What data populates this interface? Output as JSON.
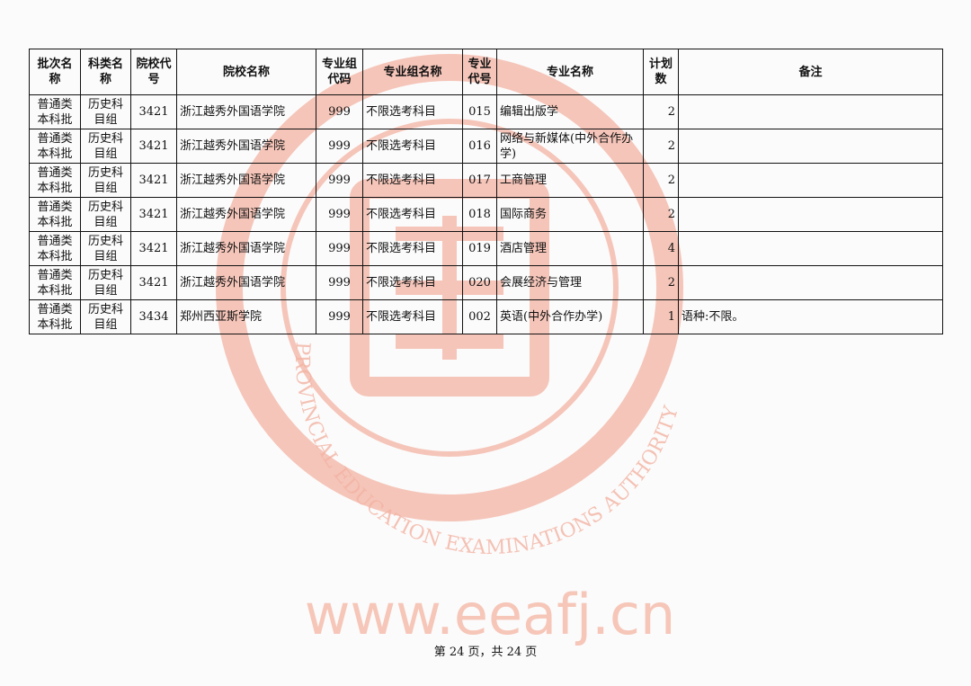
{
  "watermark": {
    "url_text": "www.eeafj.cn",
    "seal_text": "PROVINCIAL EDUCATION EXAMINATIONS AUTHORITY",
    "color": "#f0a08a"
  },
  "table": {
    "headers": [
      "批次名称",
      "科类名称",
      "院校代号",
      "院校名称",
      "专业组代码",
      "专业组名称",
      "专业代号",
      "专业名称",
      "计划数",
      "备注"
    ],
    "rows": [
      [
        "普通类本科批",
        "历史科目组",
        "3421",
        "浙江越秀外国语学院",
        "999",
        "不限选考科目",
        "015",
        "编辑出版学",
        "2",
        ""
      ],
      [
        "普通类本科批",
        "历史科目组",
        "3421",
        "浙江越秀外国语学院",
        "999",
        "不限选考科目",
        "016",
        "网络与新媒体(中外合作办学)",
        "2",
        ""
      ],
      [
        "普通类本科批",
        "历史科目组",
        "3421",
        "浙江越秀外国语学院",
        "999",
        "不限选考科目",
        "017",
        "工商管理",
        "2",
        ""
      ],
      [
        "普通类本科批",
        "历史科目组",
        "3421",
        "浙江越秀外国语学院",
        "999",
        "不限选考科目",
        "018",
        "国际商务",
        "2",
        ""
      ],
      [
        "普通类本科批",
        "历史科目组",
        "3421",
        "浙江越秀外国语学院",
        "999",
        "不限选考科目",
        "019",
        "酒店管理",
        "4",
        ""
      ],
      [
        "普通类本科批",
        "历史科目组",
        "3421",
        "浙江越秀外国语学院",
        "999",
        "不限选考科目",
        "020",
        "会展经济与管理",
        "2",
        ""
      ],
      [
        "普通类本科批",
        "历史科目组",
        "3434",
        "郑州西亚斯学院",
        "999",
        "不限选考科目",
        "002",
        "英语(中外合作办学)",
        "1",
        "语种:不限。"
      ]
    ]
  },
  "footer": "第 24 页，共 24 页"
}
